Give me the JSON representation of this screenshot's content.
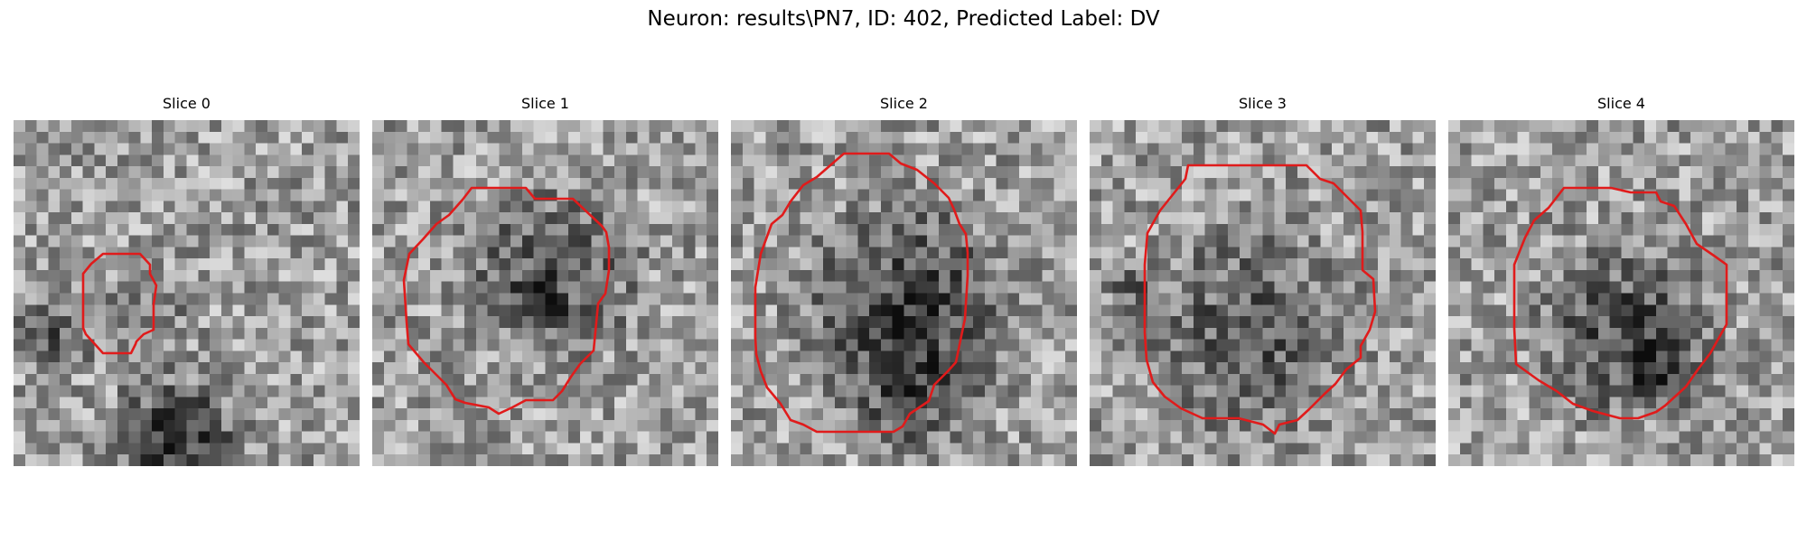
{
  "figure": {
    "title": "Neuron: results\\PN7, ID: 402, Predicted Label: DV"
  },
  "slices": [
    {
      "title": "Slice 0"
    },
    {
      "title": "Slice 1"
    },
    {
      "title": "Slice 2"
    },
    {
      "title": "Slice 3"
    },
    {
      "title": "Slice 4"
    }
  ],
  "colors": {
    "contour": "#e01b1b",
    "colormap": "gray"
  }
}
